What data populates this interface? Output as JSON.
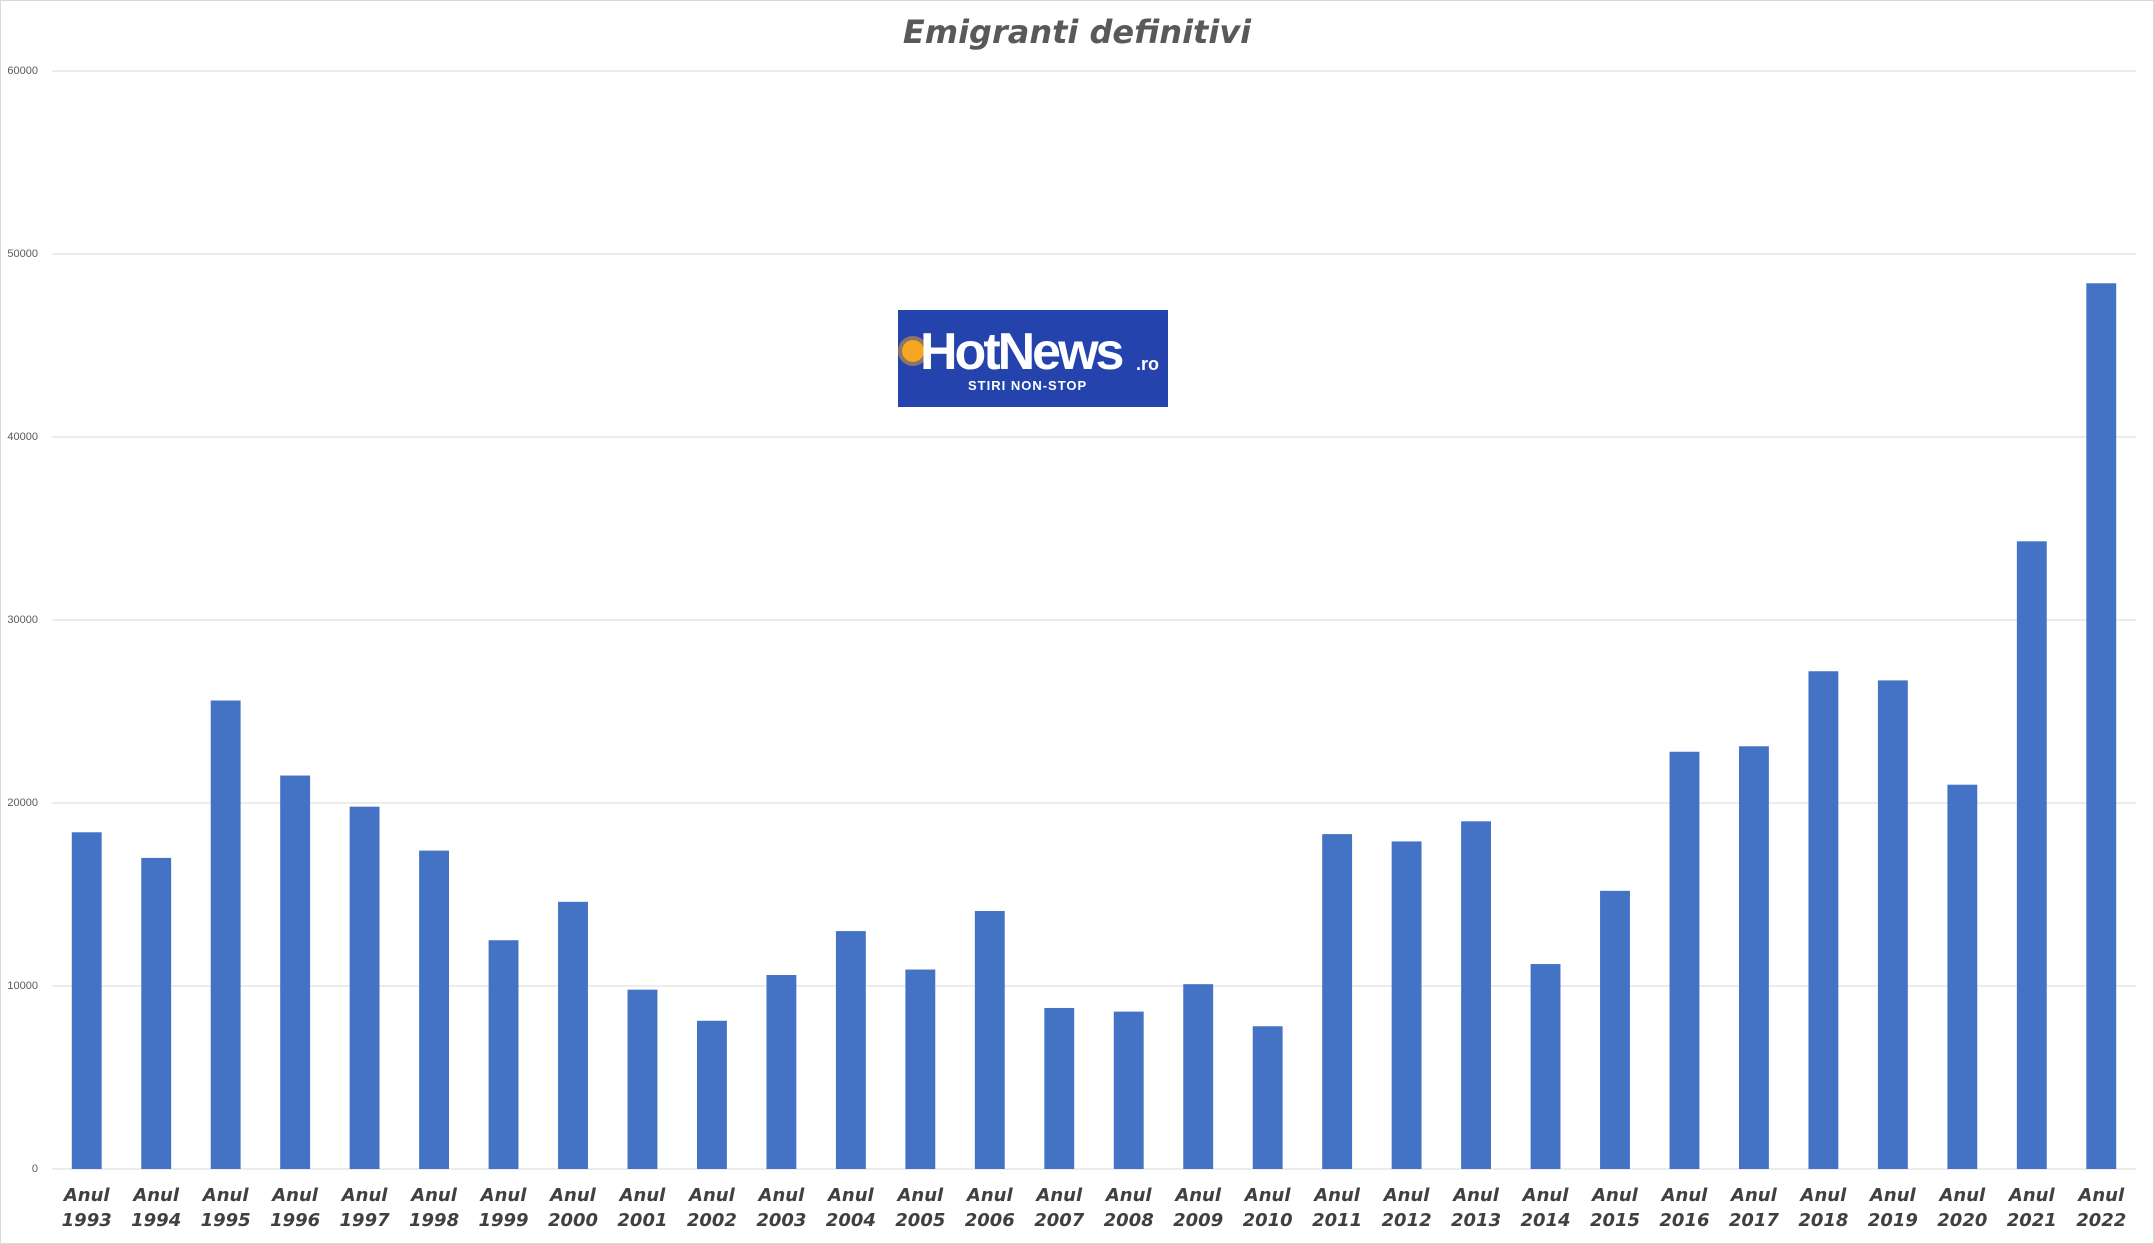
{
  "chart_data": {
    "type": "bar",
    "title": "Emigranti definitivi",
    "categories": [
      "Anul 1993",
      "Anul 1994",
      "Anul 1995",
      "Anul 1996",
      "Anul 1997",
      "Anul 1998",
      "Anul 1999",
      "Anul 2000",
      "Anul 2001",
      "Anul 2002",
      "Anul 2003",
      "Anul 2004",
      "Anul 2005",
      "Anul 2006",
      "Anul 2007",
      "Anul 2008",
      "Anul 2009",
      "Anul 2010",
      "Anul 2011",
      "Anul 2012",
      "Anul 2013",
      "Anul 2014",
      "Anul 2015",
      "Anul 2016",
      "Anul 2017",
      "Anul 2018",
      "Anul 2019",
      "Anul 2020",
      "Anul 2021",
      "Anul 2022"
    ],
    "values": [
      18400,
      17000,
      25600,
      21500,
      19800,
      17400,
      12500,
      14600,
      9800,
      8100,
      10600,
      13000,
      10900,
      14100,
      8800,
      8600,
      10100,
      7800,
      18300,
      17900,
      19000,
      11200,
      15200,
      22800,
      23100,
      27200,
      26700,
      21000,
      34300,
      48400
    ],
    "color": "#4472c4",
    "ylim": [
      0,
      60000
    ],
    "yticks": [
      0,
      10000,
      20000,
      30000,
      40000,
      50000,
      60000
    ],
    "grid": true
  },
  "logo": {
    "name": "HotNews",
    "suffix": ".ro",
    "tagline": "STIRI NON-STOP"
  }
}
